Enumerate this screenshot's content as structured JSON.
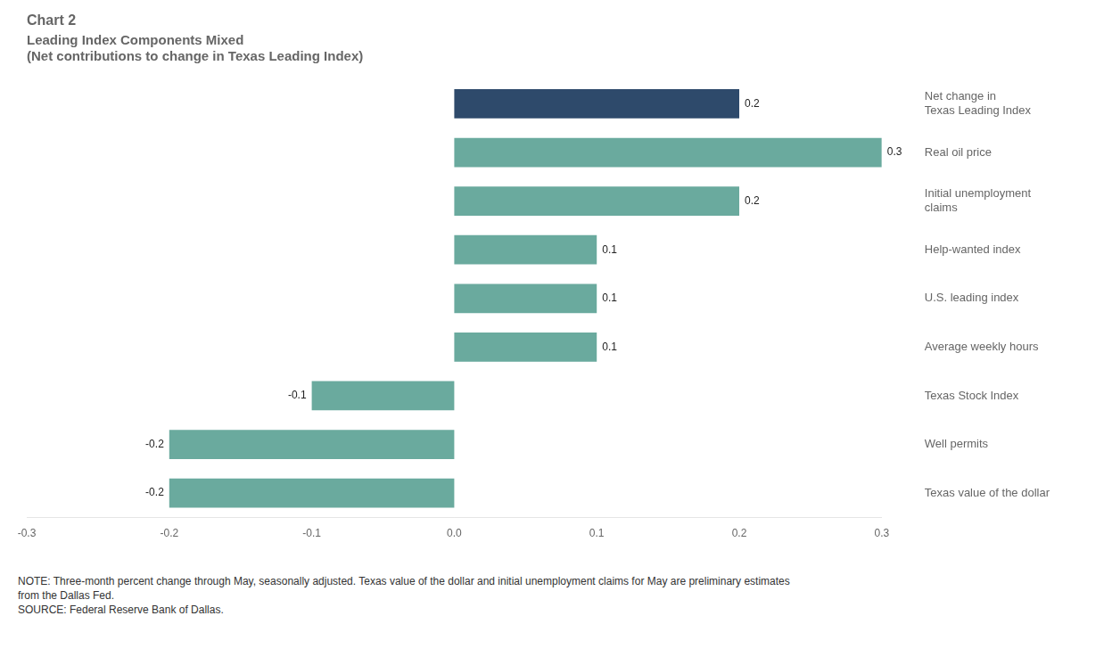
{
  "chart_data": {
    "type": "bar",
    "orientation": "horizontal",
    "title": "Chart 2",
    "subtitle": "Leading Index Components Mixed\n(Net contributions to change in Texas Leading Index)",
    "categories": [
      "Net change in\nTexas Leading Index",
      "Real oil price",
      "Initial unemployment\nclaims",
      "Help-wanted index",
      "U.S. leading index",
      "Average weekly hours",
      "Texas Stock Index",
      "Well permits",
      "Texas value of the dollar"
    ],
    "values": [
      0.2,
      0.3,
      0.2,
      0.1,
      0.1,
      0.1,
      -0.1,
      -0.2,
      -0.2
    ],
    "colors": [
      "#2e4a6b",
      "#6aaa9e",
      "#6aaa9e",
      "#6aaa9e",
      "#6aaa9e",
      "#6aaa9e",
      "#6aaa9e",
      "#6aaa9e",
      "#6aaa9e"
    ],
    "xlim": [
      -0.3,
      0.3
    ],
    "xticks": [
      -0.3,
      -0.2,
      -0.1,
      {
        "value": 0,
        "label": "0.0"
      },
      0.1,
      0.2,
      0.3
    ],
    "data_labels": true,
    "grid": false,
    "annotations": [
      "NOTE:  Three-month percent change through May, seasonally adjusted.  Texas value of the dollar and initial unemployment claims for May are preliminary estimates\nfrom the Dallas Fed.\nSOURCE:  Federal Reserve Bank of Dallas."
    ]
  }
}
